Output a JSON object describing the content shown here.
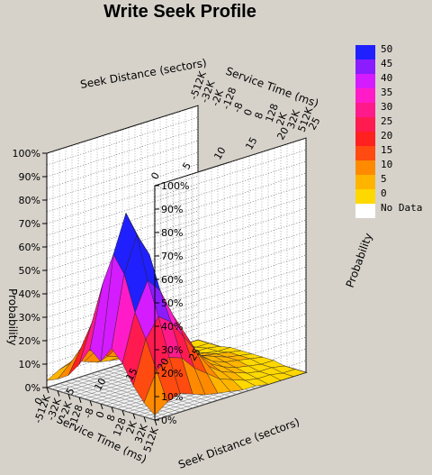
{
  "chart_data": {
    "type": "surface-3d",
    "title": "Write Seek Profile",
    "axes": {
      "seek_distance": {
        "label": "Seek Distance (sectors)",
        "ticks": [
          "-512K",
          "-32K",
          "-2K",
          "-128",
          "-8",
          "0",
          "8",
          "128",
          "2K",
          "32K",
          "512K"
        ]
      },
      "service_time": {
        "label": "Service Time (ms)",
        "ticks": [
          "0",
          "5",
          "10",
          "15",
          "20",
          "25"
        ]
      },
      "probability": {
        "label": "Probability",
        "ticks": [
          "0%",
          "10%",
          "20%",
          "30%",
          "40%",
          "50%",
          "60%",
          "70%",
          "80%",
          "90%",
          "100%"
        ],
        "range": [
          0,
          100
        ]
      }
    },
    "legend": {
      "labels": [
        "50",
        "45",
        "40",
        "35",
        "30",
        "25",
        "20",
        "15",
        "10",
        "5",
        "0",
        "No Data"
      ],
      "colors": [
        "#2020ff",
        "#8a1cff",
        "#d41cff",
        "#ff1cc8",
        "#ff1a8c",
        "#ff1a50",
        "#ff2020",
        "#ff4a10",
        "#ff8a00",
        "#ffb400",
        "#ffd800",
        "#ffffff"
      ],
      "placement": "right"
    },
    "surface_profile": {
      "note_units": "probability percent along seek-distance index 0..10 for each service-time",
      "service_time_rows": [
        0,
        2,
        4,
        6,
        8,
        10,
        12,
        14,
        16,
        18,
        20,
        22,
        24
      ],
      "values": [
        [
          3,
          5,
          8,
          14,
          22,
          18,
          25,
          20,
          12,
          6,
          2
        ],
        [
          6,
          10,
          18,
          30,
          48,
          62,
          55,
          40,
          30,
          18,
          6
        ],
        [
          8,
          14,
          24,
          40,
          60,
          78,
          70,
          52,
          38,
          22,
          8
        ],
        [
          6,
          12,
          20,
          34,
          52,
          66,
          60,
          46,
          34,
          20,
          6
        ],
        [
          4,
          8,
          14,
          24,
          36,
          44,
          40,
          34,
          26,
          14,
          4
        ],
        [
          3,
          6,
          10,
          16,
          24,
          30,
          28,
          24,
          18,
          10,
          3
        ],
        [
          2,
          4,
          7,
          10,
          14,
          18,
          16,
          14,
          10,
          6,
          2
        ],
        [
          1,
          3,
          5,
          7,
          10,
          12,
          10,
          8,
          6,
          4,
          1
        ],
        [
          1,
          2,
          3,
          4,
          6,
          7,
          6,
          5,
          4,
          2,
          1
        ],
        [
          0,
          1,
          2,
          3,
          4,
          5,
          4,
          3,
          2,
          1,
          0
        ],
        [
          0,
          1,
          1,
          2,
          3,
          3,
          3,
          2,
          1,
          1,
          0
        ],
        [
          0,
          0,
          1,
          1,
          2,
          2,
          2,
          1,
          1,
          0,
          0
        ],
        [
          0,
          0,
          0,
          1,
          1,
          1,
          1,
          1,
          0,
          0,
          0
        ]
      ]
    }
  }
}
